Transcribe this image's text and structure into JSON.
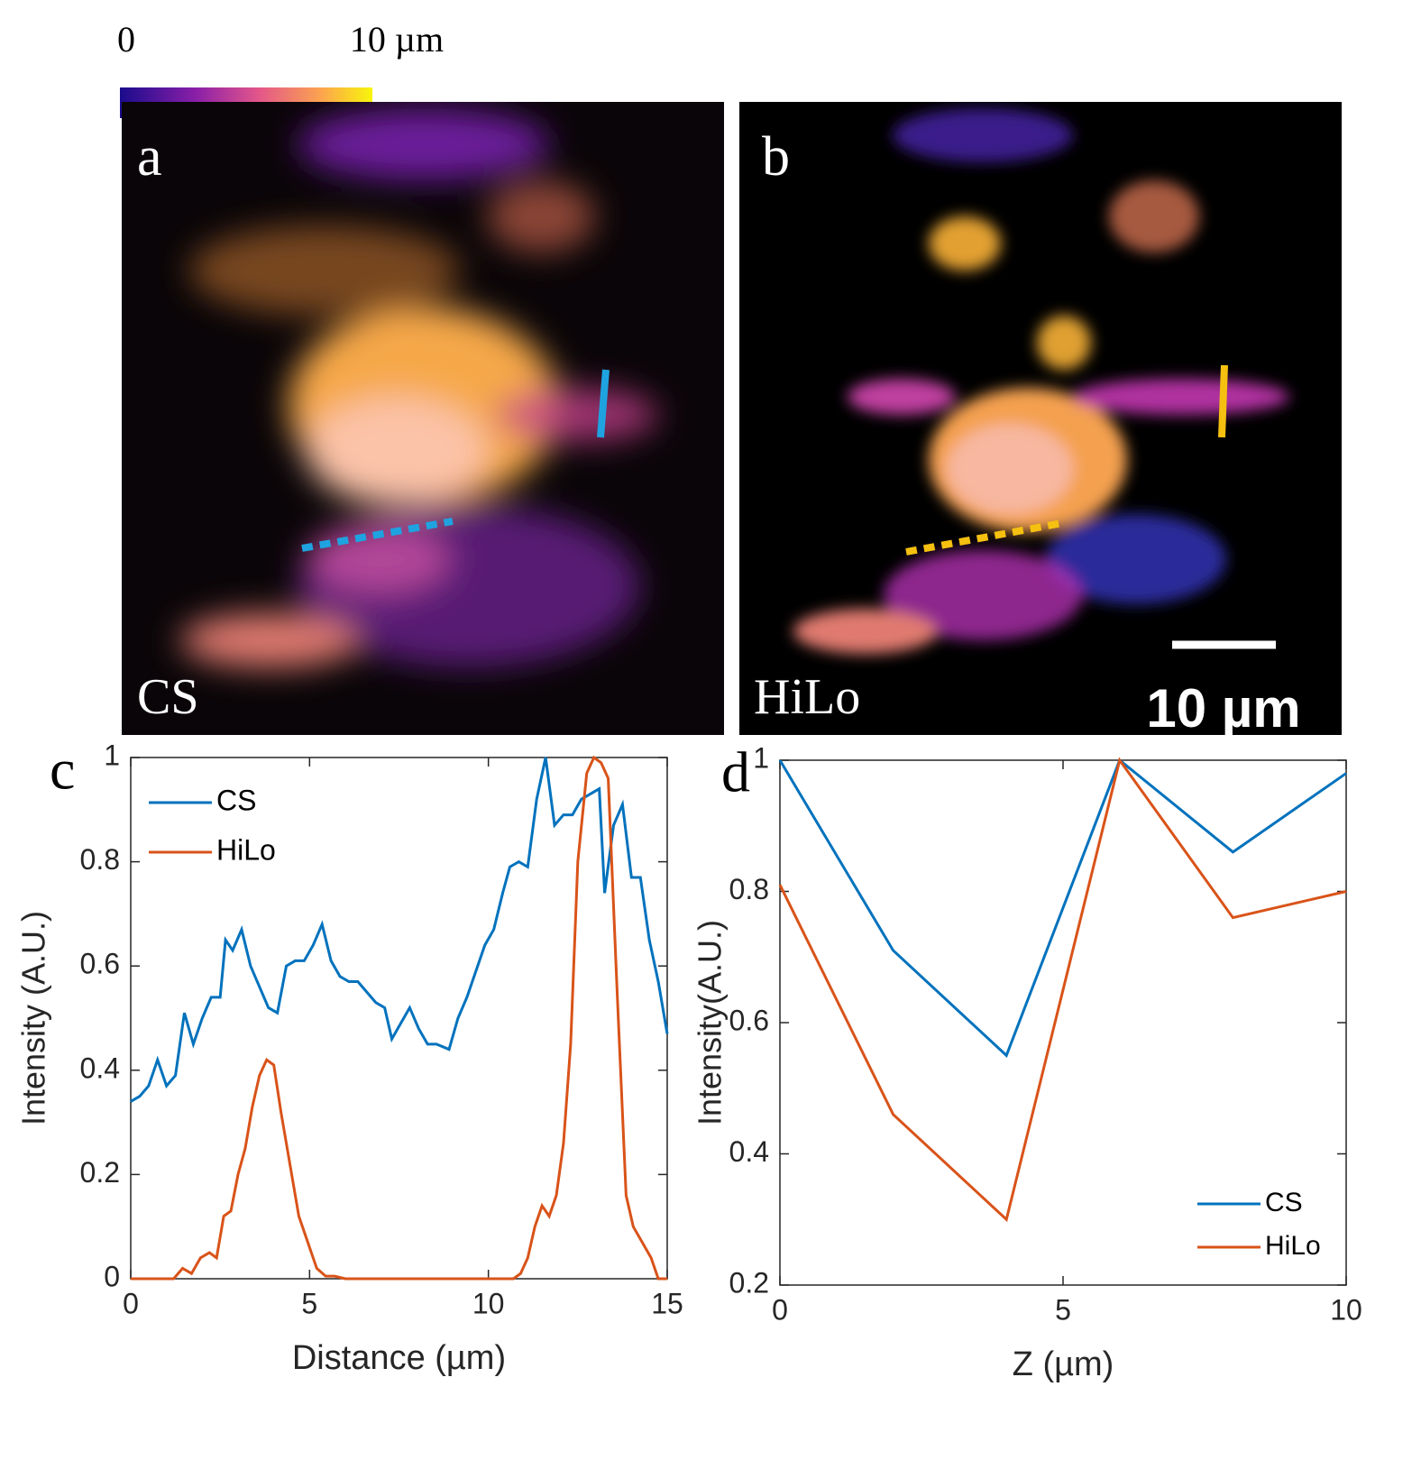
{
  "colorbar": {
    "min_label": "0",
    "max_label": "10 µm"
  },
  "panels": [
    {
      "letter": "a",
      "label": "CS"
    },
    {
      "letter": "b",
      "label": "HiLo",
      "scale_bar": "10 µm"
    }
  ],
  "chart_data": [
    {
      "type": "line",
      "panel_label": "c",
      "xlabel": "Distance (µm)",
      "ylabel": "Intensity (A.U.)",
      "xlim": [
        0,
        15
      ],
      "ylim": [
        0,
        1
      ],
      "xticks": [
        0,
        5,
        10,
        15
      ],
      "yticks": [
        0,
        0.2,
        0.4,
        0.6,
        0.8,
        1
      ],
      "legend": "upper left",
      "series": [
        {
          "name": "CS",
          "color": "#0072bd",
          "x": [
            0,
            0.25,
            0.5,
            0.75,
            1.0,
            1.25,
            1.5,
            1.75,
            2.0,
            2.25,
            2.5,
            2.65,
            2.85,
            3.1,
            3.35,
            3.6,
            3.85,
            4.1,
            4.35,
            4.6,
            4.85,
            5.1,
            5.35,
            5.6,
            5.85,
            6.1,
            6.35,
            6.6,
            6.85,
            7.1,
            7.3,
            7.55,
            7.8,
            8.05,
            8.3,
            8.55,
            8.9,
            9.15,
            9.4,
            9.65,
            9.9,
            10.15,
            10.4,
            10.6,
            10.85,
            11.1,
            11.35,
            11.6,
            11.85,
            12.1,
            12.35,
            12.6,
            12.85,
            13.1,
            13.25,
            13.5,
            13.75,
            14.0,
            14.25,
            14.5,
            14.75,
            15
          ],
          "values": [
            0.34,
            0.35,
            0.37,
            0.42,
            0.37,
            0.39,
            0.51,
            0.45,
            0.5,
            0.54,
            0.54,
            0.65,
            0.63,
            0.67,
            0.6,
            0.56,
            0.52,
            0.51,
            0.6,
            0.61,
            0.61,
            0.64,
            0.68,
            0.61,
            0.58,
            0.57,
            0.57,
            0.55,
            0.53,
            0.52,
            0.46,
            0.49,
            0.52,
            0.48,
            0.45,
            0.45,
            0.44,
            0.5,
            0.54,
            0.59,
            0.64,
            0.67,
            0.74,
            0.79,
            0.8,
            0.79,
            0.92,
            1.0,
            0.87,
            0.89,
            0.89,
            0.92,
            0.93,
            0.94,
            0.74,
            0.87,
            0.91,
            0.77,
            0.77,
            0.65,
            0.57,
            0.47
          ]
        },
        {
          "name": "HiLo",
          "color": "#d95319",
          "x": [
            0,
            1.2,
            1.45,
            1.7,
            1.95,
            2.2,
            2.4,
            2.6,
            2.8,
            3.0,
            3.2,
            3.4,
            3.6,
            3.8,
            4.0,
            4.2,
            4.45,
            4.7,
            4.95,
            5.2,
            5.45,
            5.7,
            6.0,
            10.7,
            10.9,
            11.1,
            11.3,
            11.5,
            11.7,
            11.9,
            12.1,
            12.3,
            12.5,
            12.75,
            12.95,
            13.15,
            13.35,
            13.6,
            13.85,
            14.05,
            14.3,
            14.55,
            14.75,
            15
          ],
          "values": [
            0,
            0,
            0.02,
            0.01,
            0.04,
            0.05,
            0.04,
            0.12,
            0.13,
            0.2,
            0.25,
            0.33,
            0.39,
            0.42,
            0.41,
            0.32,
            0.22,
            0.12,
            0.07,
            0.02,
            0.005,
            0.005,
            0,
            0,
            0.01,
            0.04,
            0.1,
            0.14,
            0.12,
            0.16,
            0.26,
            0.45,
            0.8,
            0.97,
            1.0,
            0.99,
            0.96,
            0.55,
            0.16,
            0.1,
            0.07,
            0.04,
            0,
            0
          ]
        }
      ]
    },
    {
      "type": "line",
      "panel_label": "d",
      "xlabel": "Z (µm)",
      "ylabel": "Intensity(A.U.)",
      "xlim": [
        0,
        10
      ],
      "ylim": [
        0.2,
        1
      ],
      "xticks": [
        0,
        5,
        10
      ],
      "yticks": [
        0.2,
        0.4,
        0.6,
        0.8,
        1
      ],
      "legend": "lower right",
      "series": [
        {
          "name": "CS",
          "color": "#0072bd",
          "x": [
            0,
            2,
            4,
            6,
            8,
            10
          ],
          "values": [
            1,
            0.71,
            0.55,
            1,
            0.86,
            0.98
          ]
        },
        {
          "name": "HiLo",
          "color": "#d95319",
          "x": [
            0,
            2,
            4,
            6,
            8,
            10
          ],
          "values": [
            0.81,
            0.46,
            0.3,
            1,
            0.76,
            0.8
          ]
        }
      ]
    }
  ]
}
